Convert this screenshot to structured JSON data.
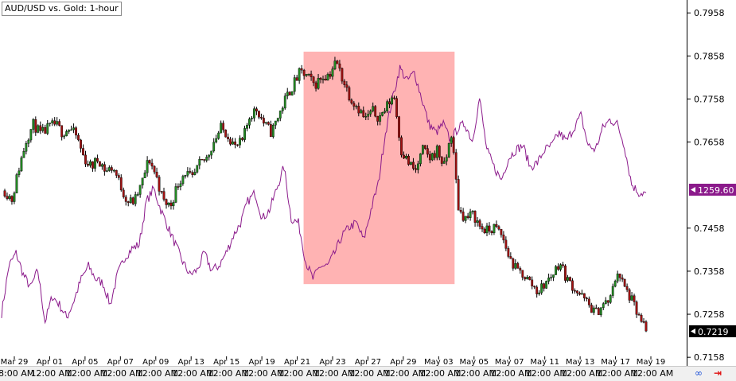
{
  "title": "AUD/USD vs. Gold: 1-hour",
  "gold_last_price": "1259.60",
  "audusd_last_price": "0.7219",
  "colors": {
    "highlight": "#ff9999",
    "gold_line": "#8b1a8b",
    "bull_candle": "#228b22",
    "bear_candle": "#a01010",
    "axis": "#000000"
  },
  "y_axis": {
    "ticks": [
      "0.7958",
      "0.7858",
      "0.7758",
      "0.7658",
      "0.7458",
      "0.7358",
      "0.7258",
      "0.7158"
    ]
  },
  "date_labels": [
    "Mar 29",
    "Apr 01",
    "Apr 05",
    "Apr 07",
    "Apr 09",
    "Apr 13",
    "Apr 15",
    "Apr 19",
    "Apr 21",
    "Apr 23",
    "Apr 27",
    "Apr 29",
    "May 03",
    "May 05",
    "May 07",
    "May 11",
    "May 13",
    "May 17",
    "May 19"
  ],
  "time_labels": [
    "8:00 AM",
    "12:00 AM",
    "12:00 AM",
    "12:00 AM",
    "12:00 AM",
    "12:00 AM",
    "12:00 AM",
    "12:00 AM",
    "12:00 AM",
    "12:00 AM",
    "12:00 AM",
    "12:00 AM",
    "12:00 AM",
    "12:00 AM",
    "12:00 AM",
    "12:00 AM",
    "12:00 AM",
    "12:00 AM",
    "12:00 AM"
  ],
  "toolbar": {
    "link_icon": "link-icon",
    "scroll_icon": "scroll-right-arrow-icon"
  },
  "chart_data": {
    "type": "line",
    "ylim": [
      0.7138,
      0.7988
    ],
    "highlight_range": {
      "start": "Apr 21",
      "end": "May 03",
      "low": 0.7328,
      "high": 0.7868
    },
    "series": [
      {
        "name": "AUD/USD",
        "style": "candlestick",
        "values": [
          0.7545,
          0.7525,
          0.76,
          0.7665,
          0.77,
          0.7675,
          0.769,
          0.77,
          0.768,
          0.769,
          0.767,
          0.762,
          0.76,
          0.762,
          0.759,
          0.76,
          0.756,
          0.752,
          0.752,
          0.756,
          0.762,
          0.758,
          0.752,
          0.751,
          0.756,
          0.759,
          0.757,
          0.7605,
          0.762,
          0.766,
          0.769,
          0.7675,
          0.7645,
          0.766,
          0.772,
          0.7735,
          0.77,
          0.768,
          0.772,
          0.776,
          0.779,
          0.782,
          0.781,
          0.779,
          0.781,
          0.7815,
          0.7845,
          0.78,
          0.776,
          0.774,
          0.771,
          0.773,
          0.7715,
          0.774,
          0.777,
          0.764,
          0.761,
          0.759,
          0.764,
          0.762,
          0.764,
          0.76,
          0.768,
          0.75,
          0.748,
          0.749,
          0.746,
          0.745,
          0.746,
          0.744,
          0.739,
          0.736,
          0.735,
          0.733,
          0.731,
          0.733,
          0.735,
          0.738,
          0.734,
          0.732,
          0.73,
          0.728,
          0.726,
          0.728,
          0.729,
          0.736,
          0.732,
          0.729,
          0.725,
          0.7219
        ]
      },
      {
        "name": "Gold",
        "style": "line",
        "values": [
          0.726,
          0.737,
          0.74,
          0.735,
          0.732,
          0.736,
          0.724,
          0.73,
          0.728,
          0.725,
          0.729,
          0.734,
          0.737,
          0.734,
          0.733,
          0.728,
          0.735,
          0.739,
          0.741,
          0.742,
          0.752,
          0.755,
          0.75,
          0.746,
          0.742,
          0.738,
          0.735,
          0.736,
          0.74,
          0.736,
          0.737,
          0.74,
          0.744,
          0.747,
          0.752,
          0.754,
          0.748,
          0.75,
          0.755,
          0.76,
          0.748,
          0.747,
          0.738,
          0.734,
          0.737,
          0.737,
          0.74,
          0.744,
          0.746,
          0.747,
          0.743,
          0.75,
          0.756,
          0.768,
          0.776,
          0.783,
          0.78,
          0.782,
          0.776,
          0.77,
          0.768,
          0.77,
          0.766,
          0.769,
          0.77,
          0.766,
          0.776,
          0.764,
          0.76,
          0.757,
          0.762,
          0.764,
          0.765,
          0.76,
          0.761,
          0.764,
          0.765,
          0.768,
          0.766,
          0.769,
          0.772,
          0.765,
          0.764,
          0.769,
          0.771,
          0.77,
          0.765,
          0.756,
          0.754,
          0.754
        ]
      }
    ]
  }
}
